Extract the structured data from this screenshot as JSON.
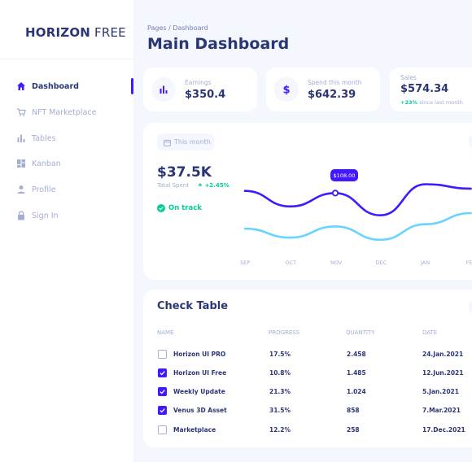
{
  "brand": {
    "bold": "HORIZON",
    "light": " FREE"
  },
  "sidebar": {
    "items": [
      {
        "label": "Dashboard",
        "icon": "home-icon",
        "active": true
      },
      {
        "label": "NFT Marketplace",
        "icon": "cart-icon",
        "active": false
      },
      {
        "label": "Tables",
        "icon": "bar-chart-icon",
        "active": false
      },
      {
        "label": "Kanban",
        "icon": "dashboard-grid-icon",
        "active": false
      },
      {
        "label": "Profile",
        "icon": "person-icon",
        "active": false
      },
      {
        "label": "Sign In",
        "icon": "lock-icon",
        "active": false
      }
    ]
  },
  "header": {
    "breadcrumb": "Pages / Dashboard",
    "title": "Main Dashboard"
  },
  "stats": [
    {
      "label": "Earnings",
      "value": "$350.4",
      "icon": "bar-chart-icon"
    },
    {
      "label": "Spend this month",
      "value": "$642.39",
      "icon": "dollar-icon"
    },
    {
      "label": "Sales",
      "value": "$574.34",
      "change": "+23%",
      "change_suffix": " since last month"
    }
  ],
  "total_spent": {
    "period_button": "This month",
    "value": "$37.5K",
    "label": "Total Spent",
    "change": "+2.45%",
    "status": "On track",
    "tooltip": "$108.00"
  },
  "chart_data": {
    "type": "line",
    "categories": [
      "SEP",
      "OCT",
      "NOV",
      "DEC",
      "JAN",
      "FEB"
    ],
    "series": [
      {
        "values": [
          110,
          96,
          108,
          88,
          116,
          112
        ]
      },
      {
        "values": [
          76,
          68,
          78,
          66,
          80,
          90
        ]
      }
    ],
    "annotations": [
      {
        "category": "NOV",
        "label": "$108.00"
      }
    ],
    "colors": {
      "series_1": "#4318FF",
      "series_2": "#6AD2FF"
    },
    "grid": false
  },
  "table": {
    "title": "Check Table",
    "columns": [
      "NAME",
      "PROGRESS",
      "QUANTITY",
      "DATE"
    ],
    "rows": [
      {
        "checked": false,
        "name": "Horizon UI PRO",
        "progress": "17.5%",
        "quantity": "2.458",
        "date": "24.Jan.2021"
      },
      {
        "checked": true,
        "name": "Horizon UI Free",
        "progress": "10.8%",
        "quantity": "1.485",
        "date": "12.Jun.2021"
      },
      {
        "checked": true,
        "name": "Weekly Update",
        "progress": "21.3%",
        "quantity": "1.024",
        "date": "5.Jan.2021"
      },
      {
        "checked": true,
        "name": "Venus 3D Asset",
        "progress": "31.5%",
        "quantity": "858",
        "date": "7.Mar.2021"
      },
      {
        "checked": false,
        "name": "Marketplace",
        "progress": "12.2%",
        "quantity": "258",
        "date": "17.Dec.2021"
      }
    ]
  },
  "colors": {
    "brand": "#4318FF",
    "navy": "#2B3674",
    "muted": "#A3AED0",
    "success": "#05CD99",
    "background": "#F4F7FE"
  }
}
